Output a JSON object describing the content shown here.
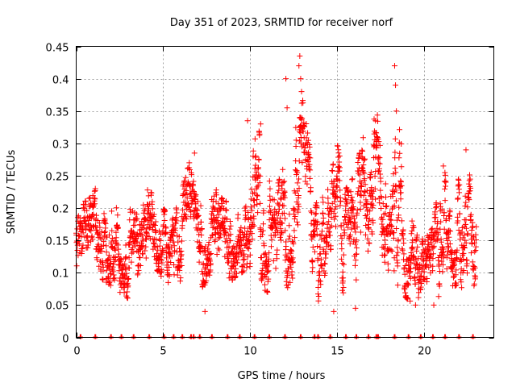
{
  "chart_data": {
    "type": "scatter",
    "marker": "+",
    "title": "Day 351 of 2023, SRMTID for receiver norf",
    "xlabel": "GPS time / hours",
    "ylabel": "SRMTID / TECUs",
    "xlim": [
      0,
      24
    ],
    "ylim": [
      0,
      0.45
    ],
    "xticks": [
      0,
      5,
      10,
      15,
      20
    ],
    "xtick_labels": [
      "0",
      "5",
      "10",
      "15",
      "20"
    ],
    "yticks": [
      0,
      0.05,
      0.1,
      0.15,
      0.2,
      0.25,
      0.3,
      0.35,
      0.4,
      0.45
    ],
    "ytick_labels": [
      "0",
      "0.05",
      "0.1",
      "0.15",
      "0.2",
      "0.25",
      "0.3",
      "0.35",
      "0.4",
      "0.45"
    ],
    "grid": true,
    "series": [
      {
        "name": "SRMTID",
        "color": "#ff0000",
        "sample_every_hours": 0.01,
        "x_range": [
          0,
          23
        ],
        "envelope": {
          "x": [
            0.0,
            0.5,
            1.0,
            1.5,
            2.0,
            2.5,
            3.0,
            3.5,
            4.0,
            4.5,
            5.0,
            5.5,
            6.0,
            6.5,
            7.0,
            7.5,
            8.0,
            8.5,
            9.0,
            9.5,
            10.0,
            10.5,
            11.0,
            11.5,
            12.0,
            12.5,
            13.0,
            13.5,
            14.0,
            14.5,
            15.0,
            15.5,
            16.0,
            16.5,
            17.0,
            17.5,
            18.0,
            18.5,
            19.0,
            19.5,
            20.0,
            20.5,
            21.0,
            21.5,
            22.0,
            22.5,
            23.0
          ],
          "low": [
            0.09,
            0.1,
            0.08,
            0.1,
            0.09,
            0.08,
            0.07,
            0.1,
            0.11,
            0.12,
            0.1,
            0.09,
            0.07,
            0.08,
            0.06,
            0.1,
            0.09,
            0.08,
            0.1,
            0.11,
            0.12,
            0.09,
            0.08,
            0.07,
            0.08,
            0.1,
            0.12,
            0.1,
            0.06,
            0.08,
            0.1,
            0.07,
            0.08,
            0.11,
            0.12,
            0.14,
            0.11,
            0.09,
            0.07,
            0.06,
            0.06,
            0.06,
            0.08,
            0.09,
            0.09,
            0.08,
            0.06
          ],
          "high": [
            0.17,
            0.2,
            0.21,
            0.26,
            0.24,
            0.16,
            0.19,
            0.18,
            0.22,
            0.21,
            0.19,
            0.17,
            0.21,
            0.26,
            0.2,
            0.18,
            0.22,
            0.2,
            0.22,
            0.25,
            0.3,
            0.31,
            0.24,
            0.22,
            0.26,
            0.3,
            0.36,
            0.27,
            0.2,
            0.22,
            0.29,
            0.22,
            0.24,
            0.3,
            0.34,
            0.33,
            0.35,
            0.38,
            0.2,
            0.15,
            0.14,
            0.16,
            0.26,
            0.22,
            0.24,
            0.25,
            0.21
          ]
        },
        "spikes": [
          {
            "x": 12.05,
            "y": 0.4
          },
          {
            "x": 12.85,
            "y": 0.435
          },
          {
            "x": 12.8,
            "y": 0.42
          },
          {
            "x": 12.9,
            "y": 0.4
          },
          {
            "x": 12.95,
            "y": 0.38
          },
          {
            "x": 12.12,
            "y": 0.355
          },
          {
            "x": 12.85,
            "y": 0.34
          },
          {
            "x": 18.3,
            "y": 0.42
          },
          {
            "x": 18.35,
            "y": 0.39
          },
          {
            "x": 18.4,
            "y": 0.35
          },
          {
            "x": 17.2,
            "y": 0.335
          },
          {
            "x": 9.85,
            "y": 0.335
          },
          {
            "x": 10.6,
            "y": 0.33
          },
          {
            "x": 6.8,
            "y": 0.285
          },
          {
            "x": 22.4,
            "y": 0.29
          },
          {
            "x": 21.1,
            "y": 0.265
          },
          {
            "x": 14.8,
            "y": 0.04
          },
          {
            "x": 7.4,
            "y": 0.04
          },
          {
            "x": 16.05,
            "y": 0.045
          },
          {
            "x": 19.5,
            "y": 0.05
          },
          {
            "x": 20.55,
            "y": 0.05
          }
        ]
      },
      {
        "name": "baseline",
        "color": "#ff0000",
        "y": 0,
        "x": [
          0.25,
          1.1,
          2.0,
          2.6,
          3.3,
          4.2,
          5.05,
          5.6,
          6.1,
          6.6,
          6.75,
          7.1,
          7.8,
          8.7,
          9.4,
          10.25,
          11.1,
          12.0,
          12.9,
          13.7,
          13.9,
          14.6,
          15.5,
          16.1,
          16.8,
          17.25,
          17.35,
          18.3,
          19.1,
          19.8,
          20.5,
          21.2,
          22.0,
          22.8
        ]
      }
    ]
  }
}
